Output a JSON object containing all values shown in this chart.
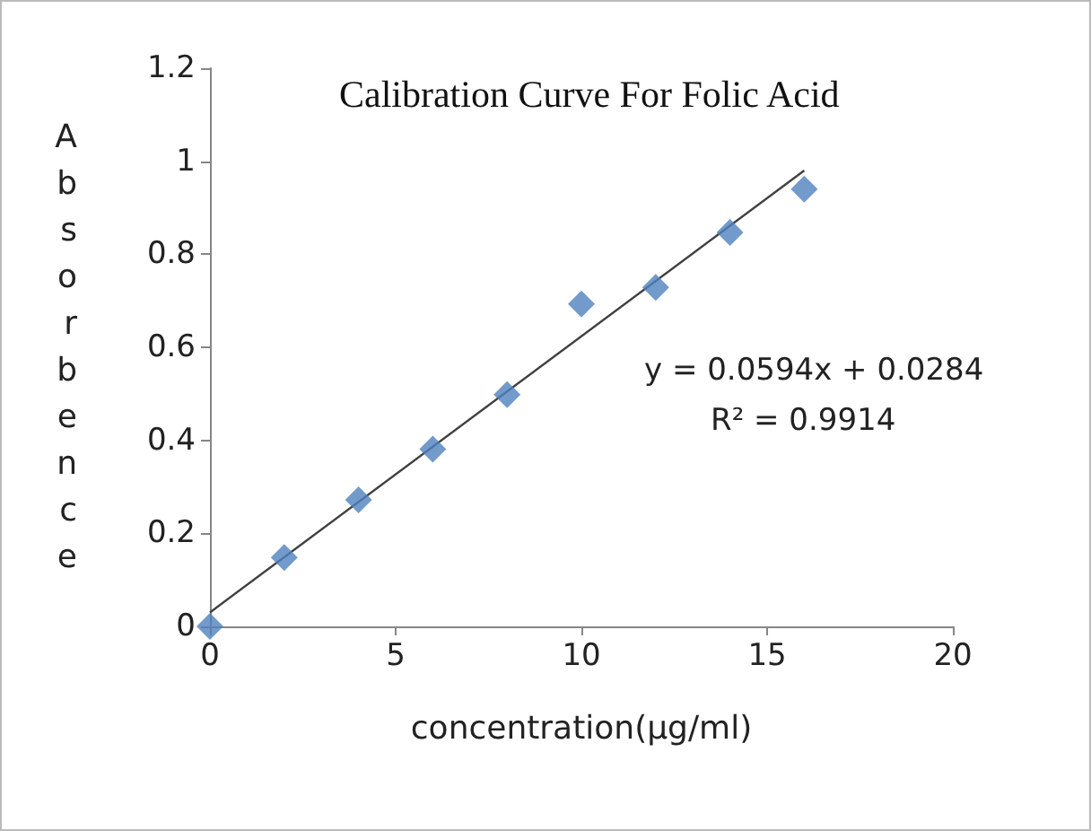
{
  "chart_data": {
    "type": "scatter",
    "title": "Calibration Curve For Folic Acid",
    "xlabel": "concentration(µg/ml)",
    "ylabel": "Absorbence",
    "x": [
      0,
      2,
      4,
      6,
      8,
      10,
      12,
      14,
      16
    ],
    "series": [
      {
        "color": "#4f81bd",
        "values": [
          0,
          0.148,
          0.272,
          0.381,
          0.498,
          0.693,
          0.729,
          0.847,
          0.94
        ],
        "marker": "diamond"
      },
      {
        "type": "line",
        "color": "#404040",
        "x": [
          0,
          16
        ],
        "values": [
          0.03,
          0.98
        ],
        "marker": "none"
      }
    ],
    "xlim": [
      0,
      20
    ],
    "xticks": [
      0,
      5,
      10,
      15,
      20
    ],
    "ylim": [
      0,
      1.2
    ],
    "yticks": [
      0,
      0.2,
      0.4,
      0.6,
      0.8,
      1,
      1.2
    ],
    "grid": false,
    "annotations": [
      "y = 0.0594x + 0.0284",
      "R² = 0.9914"
    ]
  }
}
